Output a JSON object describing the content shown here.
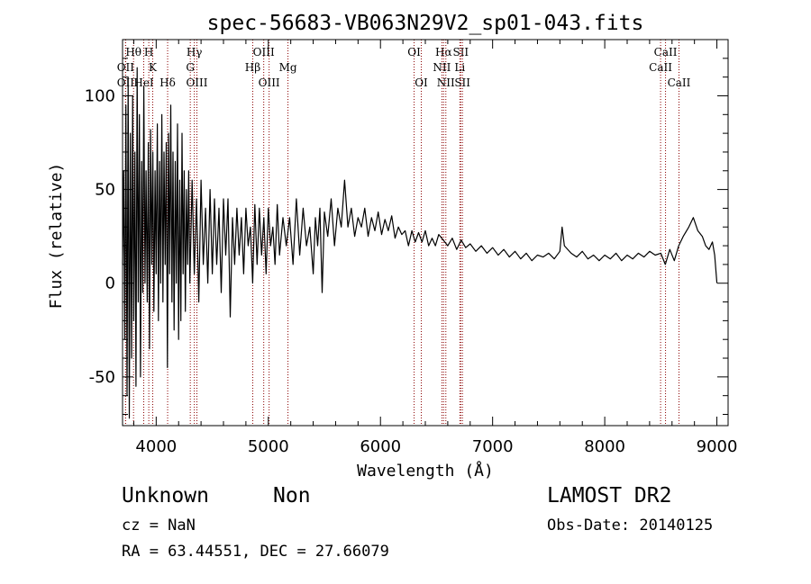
{
  "chart_data": {
    "type": "line",
    "title": "spec-56683-VB063N29V2_sp01-043.fits",
    "xlabel": "Wavelength (Å)",
    "ylabel": "Flux (relative)",
    "xlim": [
      3700,
      9100
    ],
    "ylim": [
      -76,
      130
    ],
    "x_ticks": [
      4000,
      5000,
      6000,
      7000,
      8000,
      9000
    ],
    "y_ticks": [
      -50,
      0,
      50,
      100
    ],
    "grid": false,
    "line_color": "#000000",
    "marker_color": "#8b0000",
    "spectrum": [
      [
        3700,
        10
      ],
      [
        3710,
        60
      ],
      [
        3720,
        -30
      ],
      [
        3730,
        95
      ],
      [
        3740,
        -60
      ],
      [
        3750,
        110
      ],
      [
        3760,
        -72
      ],
      [
        3770,
        80
      ],
      [
        3780,
        -40
      ],
      [
        3790,
        100
      ],
      [
        3800,
        -20
      ],
      [
        3810,
        70
      ],
      [
        3820,
        -55
      ],
      [
        3830,
        115
      ],
      [
        3840,
        -10
      ],
      [
        3850,
        90
      ],
      [
        3860,
        -50
      ],
      [
        3870,
        65
      ],
      [
        3880,
        -5
      ],
      [
        3890,
        105
      ],
      [
        3900,
        0
      ],
      [
        3910,
        60
      ],
      [
        3920,
        -10
      ],
      [
        3930,
        75
      ],
      [
        3940,
        -35
      ],
      [
        3950,
        82
      ],
      [
        3960,
        10
      ],
      [
        3970,
        70
      ],
      [
        3980,
        -15
      ],
      [
        3990,
        60
      ],
      [
        4000,
        5
      ],
      [
        4010,
        85
      ],
      [
        4020,
        -20
      ],
      [
        4030,
        65
      ],
      [
        4040,
        0
      ],
      [
        4050,
        90
      ],
      [
        4060,
        -10
      ],
      [
        4070,
        70
      ],
      [
        4080,
        10
      ],
      [
        4090,
        75
      ],
      [
        4100,
        -45
      ],
      [
        4110,
        80
      ],
      [
        4120,
        5
      ],
      [
        4130,
        95
      ],
      [
        4140,
        -10
      ],
      [
        4150,
        70
      ],
      [
        4160,
        -25
      ],
      [
        4170,
        65
      ],
      [
        4180,
        0
      ],
      [
        4190,
        85
      ],
      [
        4200,
        -30
      ],
      [
        4210,
        55
      ],
      [
        4220,
        -20
      ],
      [
        4230,
        80
      ],
      [
        4240,
        5
      ],
      [
        4250,
        60
      ],
      [
        4260,
        -15
      ],
      [
        4270,
        50
      ],
      [
        4280,
        10
      ],
      [
        4290,
        60
      ],
      [
        4300,
        0
      ],
      [
        4320,
        55
      ],
      [
        4340,
        5
      ],
      [
        4360,
        45
      ],
      [
        4380,
        -10
      ],
      [
        4400,
        55
      ],
      [
        4420,
        10
      ],
      [
        4440,
        40
      ],
      [
        4460,
        0
      ],
      [
        4480,
        50
      ],
      [
        4500,
        5
      ],
      [
        4520,
        45
      ],
      [
        4540,
        10
      ],
      [
        4560,
        40
      ],
      [
        4580,
        -5
      ],
      [
        4600,
        45
      ],
      [
        4620,
        15
      ],
      [
        4640,
        45
      ],
      [
        4660,
        -18
      ],
      [
        4680,
        35
      ],
      [
        4700,
        10
      ],
      [
        4720,
        40
      ],
      [
        4740,
        15
      ],
      [
        4760,
        35
      ],
      [
        4780,
        5
      ],
      [
        4800,
        40
      ],
      [
        4820,
        20
      ],
      [
        4840,
        30
      ],
      [
        4860,
        0
      ],
      [
        4880,
        42
      ],
      [
        4900,
        10
      ],
      [
        4920,
        40
      ],
      [
        4940,
        15
      ],
      [
        4960,
        35
      ],
      [
        4980,
        5
      ],
      [
        5000,
        40
      ],
      [
        5020,
        20
      ],
      [
        5040,
        30
      ],
      [
        5060,
        10
      ],
      [
        5080,
        42
      ],
      [
        5100,
        15
      ],
      [
        5130,
        35
      ],
      [
        5160,
        20
      ],
      [
        5190,
        35
      ],
      [
        5220,
        10
      ],
      [
        5250,
        45
      ],
      [
        5280,
        15
      ],
      [
        5310,
        40
      ],
      [
        5340,
        20
      ],
      [
        5370,
        30
      ],
      [
        5400,
        5
      ],
      [
        5420,
        35
      ],
      [
        5440,
        20
      ],
      [
        5460,
        40
      ],
      [
        5480,
        -5
      ],
      [
        5500,
        38
      ],
      [
        5530,
        25
      ],
      [
        5560,
        45
      ],
      [
        5590,
        20
      ],
      [
        5620,
        40
      ],
      [
        5650,
        30
      ],
      [
        5680,
        55
      ],
      [
        5710,
        30
      ],
      [
        5740,
        40
      ],
      [
        5770,
        25
      ],
      [
        5800,
        35
      ],
      [
        5830,
        30
      ],
      [
        5860,
        40
      ],
      [
        5890,
        25
      ],
      [
        5920,
        35
      ],
      [
        5950,
        28
      ],
      [
        5980,
        38
      ],
      [
        6010,
        26
      ],
      [
        6040,
        34
      ],
      [
        6070,
        28
      ],
      [
        6100,
        36
      ],
      [
        6130,
        24
      ],
      [
        6160,
        30
      ],
      [
        6190,
        26
      ],
      [
        6220,
        28
      ],
      [
        6250,
        20
      ],
      [
        6280,
        28
      ],
      [
        6310,
        22
      ],
      [
        6340,
        27
      ],
      [
        6370,
        22
      ],
      [
        6400,
        28
      ],
      [
        6430,
        20
      ],
      [
        6460,
        24
      ],
      [
        6490,
        20
      ],
      [
        6520,
        26
      ],
      [
        6560,
        23
      ],
      [
        6600,
        20
      ],
      [
        6640,
        24
      ],
      [
        6680,
        18
      ],
      [
        6720,
        23
      ],
      [
        6760,
        19
      ],
      [
        6800,
        21
      ],
      [
        6850,
        17
      ],
      [
        6900,
        20
      ],
      [
        6950,
        16
      ],
      [
        7000,
        19
      ],
      [
        7050,
        15
      ],
      [
        7100,
        18
      ],
      [
        7150,
        14
      ],
      [
        7200,
        17
      ],
      [
        7250,
        13
      ],
      [
        7300,
        16
      ],
      [
        7350,
        12
      ],
      [
        7400,
        15
      ],
      [
        7450,
        14
      ],
      [
        7500,
        16
      ],
      [
        7550,
        13
      ],
      [
        7600,
        17
      ],
      [
        7620,
        30
      ],
      [
        7640,
        20
      ],
      [
        7700,
        16
      ],
      [
        7750,
        14
      ],
      [
        7800,
        17
      ],
      [
        7850,
        13
      ],
      [
        7900,
        15
      ],
      [
        7950,
        12
      ],
      [
        8000,
        15
      ],
      [
        8050,
        13
      ],
      [
        8100,
        16
      ],
      [
        8150,
        12
      ],
      [
        8200,
        15
      ],
      [
        8250,
        13
      ],
      [
        8300,
        16
      ],
      [
        8350,
        14
      ],
      [
        8400,
        17
      ],
      [
        8450,
        15
      ],
      [
        8500,
        16
      ],
      [
        8540,
        10
      ],
      [
        8580,
        18
      ],
      [
        8620,
        12
      ],
      [
        8660,
        20
      ],
      [
        8700,
        25
      ],
      [
        8750,
        30
      ],
      [
        8790,
        35
      ],
      [
        8830,
        28
      ],
      [
        8870,
        25
      ],
      [
        8900,
        20
      ],
      [
        8930,
        18
      ],
      [
        8960,
        22
      ],
      [
        8980,
        15
      ],
      [
        9000,
        0
      ]
    ],
    "lines": [
      {
        "name": "OII",
        "wavelength": 3727,
        "row": 2
      },
      {
        "name": "OII",
        "wavelength": 3727,
        "row": 3
      },
      {
        "name": "Hθ",
        "wavelength": 3798,
        "row": 1
      },
      {
        "name": "HeI",
        "wavelength": 3889,
        "row": 3
      },
      {
        "name": "H",
        "wavelength": 3934,
        "row": 1
      },
      {
        "name": "K",
        "wavelength": 3969,
        "row": 2
      },
      {
        "name": "Hδ",
        "wavelength": 4102,
        "row": 3
      },
      {
        "name": "Hγ",
        "wavelength": 4340,
        "row": 1
      },
      {
        "name": "G",
        "wavelength": 4304,
        "row": 2
      },
      {
        "name": "OIII",
        "wavelength": 4363,
        "row": 3
      },
      {
        "name": "OIII",
        "wavelength": 4959,
        "row": 1
      },
      {
        "name": "Hβ",
        "wavelength": 4861,
        "row": 2
      },
      {
        "name": "OIII",
        "wavelength": 5007,
        "row": 3
      },
      {
        "name": "Mg",
        "wavelength": 5175,
        "row": 2
      },
      {
        "name": "OI",
        "wavelength": 6300,
        "row": 1
      },
      {
        "name": "OI",
        "wavelength": 6364,
        "row": 3
      },
      {
        "name": "Hα",
        "wavelength": 6563,
        "row": 1
      },
      {
        "name": "NII",
        "wavelength": 6548,
        "row": 2
      },
      {
        "name": "NII",
        "wavelength": 6583,
        "row": 3
      },
      {
        "name": "SII",
        "wavelength": 6716,
        "row": 1
      },
      {
        "name": "Li",
        "wavelength": 6708,
        "row": 2
      },
      {
        "name": "SII",
        "wavelength": 6731,
        "row": 3
      },
      {
        "name": "CaII",
        "wavelength": 8542,
        "row": 1
      },
      {
        "name": "CaII",
        "wavelength": 8498,
        "row": 2
      },
      {
        "name": "CaII",
        "wavelength": 8662,
        "row": 3
      }
    ]
  },
  "info": {
    "object_class": "Unknown",
    "subclass": "Non",
    "survey": "LAMOST DR2",
    "cz": "cz = NaN",
    "obs_date": "Obs-Date: 20140125",
    "coords": "RA =  63.44551, DEC =  27.66079"
  }
}
